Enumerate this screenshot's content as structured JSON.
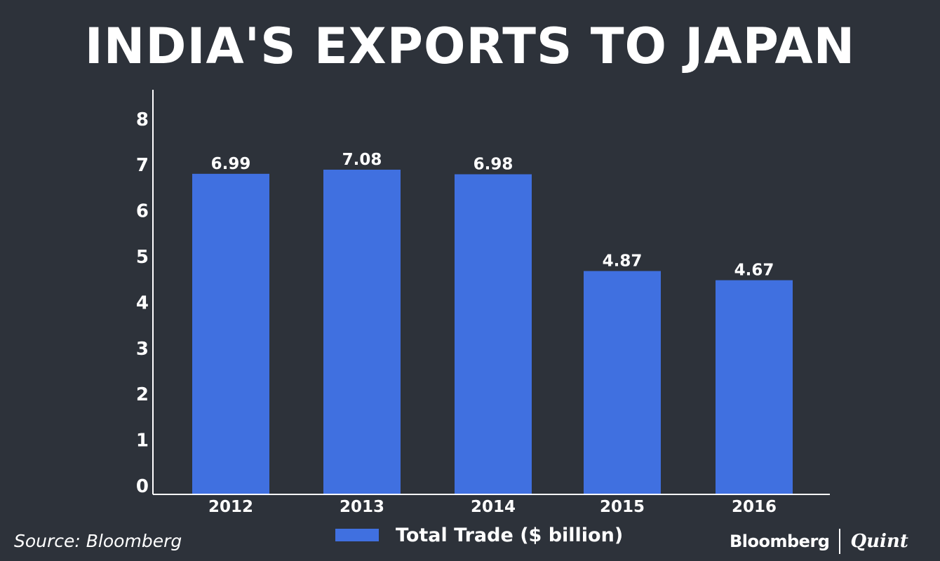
{
  "chart_data": {
    "type": "bar",
    "title": "INDIA'S EXPORTS TO JAPAN",
    "xlabel": "",
    "ylabel": "",
    "categories": [
      "2012",
      "2013",
      "2014",
      "2015",
      "2016"
    ],
    "series": [
      {
        "name": "Total Trade ($ billion)",
        "values": [
          6.99,
          7.08,
          6.98,
          4.87,
          4.67
        ],
        "color": "#4070e0"
      }
    ],
    "data_labels": [
      "6.99",
      "7.08",
      "6.98",
      "4.87",
      "4.67"
    ],
    "ylim": [
      0,
      8
    ],
    "yticks": [
      "0",
      "1",
      "2",
      "3",
      "4",
      "5",
      "6",
      "7",
      "8"
    ],
    "grid": false,
    "legend_position": "bottom"
  },
  "source": "Source: Bloomberg",
  "brand": {
    "primary": "Bloomberg",
    "secondary": "Quint"
  },
  "colors": {
    "background": "#2d323a",
    "bar": "#4070e0",
    "text": "#ffffff"
  }
}
